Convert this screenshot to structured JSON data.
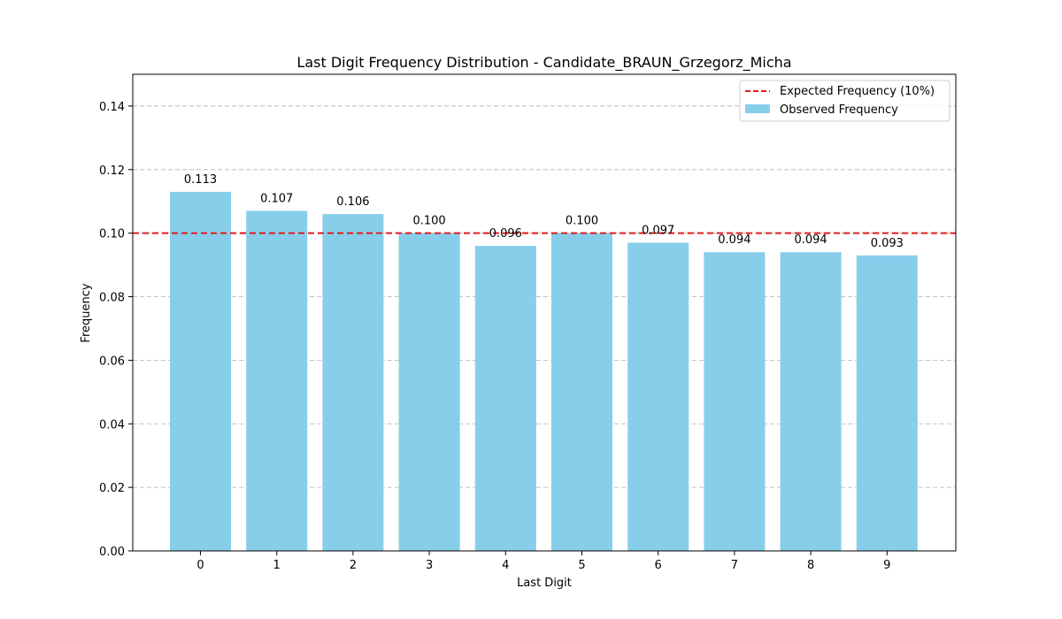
{
  "chart_data": {
    "type": "bar",
    "title": "Last Digit Frequency Distribution - Candidate_BRAUN_Grzegorz_Micha",
    "xlabel": "Last Digit",
    "ylabel": "Frequency",
    "categories": [
      "0",
      "1",
      "2",
      "3",
      "4",
      "5",
      "6",
      "7",
      "8",
      "9"
    ],
    "values": [
      0.113,
      0.107,
      0.106,
      0.1,
      0.096,
      0.1,
      0.097,
      0.094,
      0.094,
      0.093
    ],
    "value_labels": [
      "0.113",
      "0.107",
      "0.106",
      "0.100",
      "0.096",
      "0.100",
      "0.097",
      "0.094",
      "0.094",
      "0.093"
    ],
    "ylim": [
      0,
      0.15
    ],
    "yticks": [
      0.0,
      0.02,
      0.04,
      0.06,
      0.08,
      0.1,
      0.12,
      0.14
    ],
    "ytick_labels": [
      "0.00",
      "0.02",
      "0.04",
      "0.06",
      "0.08",
      "0.10",
      "0.12",
      "0.14"
    ],
    "grid": "horizontal dashed",
    "reference_line": {
      "value": 0.1,
      "label": "Expected Frequency (10%)",
      "color": "#e31a1c",
      "style": "dashed"
    },
    "series": [
      {
        "name": "Observed Frequency",
        "color": "#87ceeb"
      }
    ],
    "legend": {
      "position": "top-right",
      "entries": [
        "Expected Frequency (10%)",
        "Observed Frequency"
      ]
    }
  }
}
